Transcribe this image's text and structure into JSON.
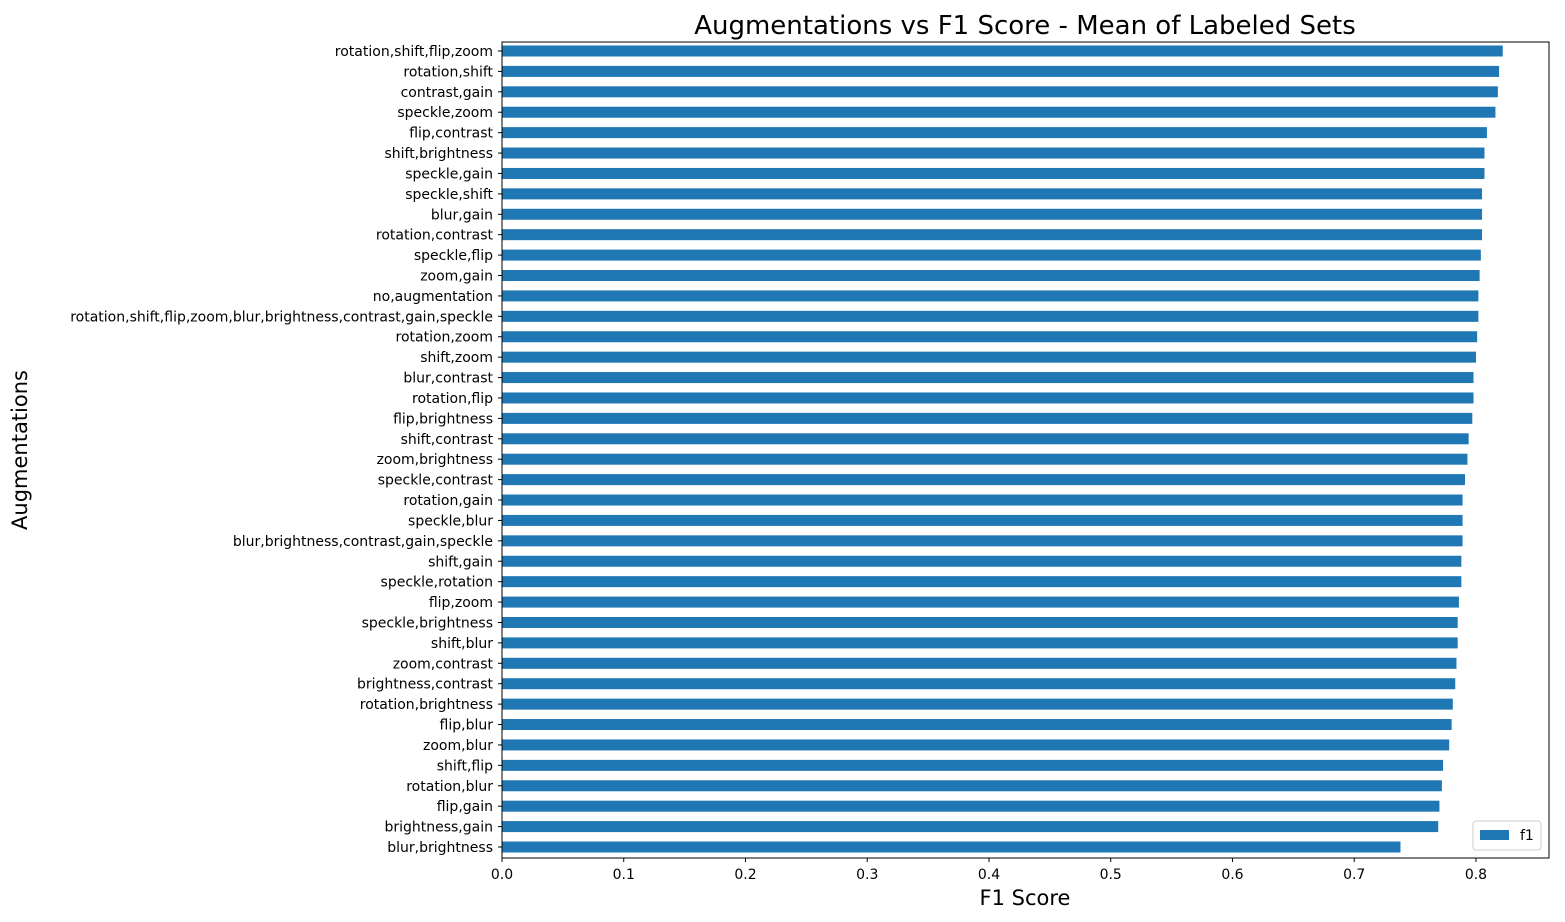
{
  "chart_data": {
    "type": "bar",
    "orientation": "horizontal",
    "title": "Augmentations vs F1 Score - Mean of Labeled Sets",
    "xlabel": "F1 Score",
    "ylabel": "Augmentations",
    "xlim": [
      0,
      0.86
    ],
    "xticks": [
      "0.0",
      "0.1",
      "0.2",
      "0.3",
      "0.4",
      "0.5",
      "0.6",
      "0.7",
      "0.8"
    ],
    "grid": false,
    "legend_position": "lower-right",
    "bar_color": "#1f77b4",
    "series": [
      {
        "name": "f1",
        "points": [
          {
            "label": "rotation,shift,flip,zoom",
            "value": 0.822
          },
          {
            "label": "rotation,shift",
            "value": 0.819
          },
          {
            "label": "contrast,gain",
            "value": 0.818
          },
          {
            "label": "speckle,zoom",
            "value": 0.816
          },
          {
            "label": "flip,contrast",
            "value": 0.809
          },
          {
            "label": "shift,brightness",
            "value": 0.807
          },
          {
            "label": "speckle,gain",
            "value": 0.807
          },
          {
            "label": "speckle,shift",
            "value": 0.805
          },
          {
            "label": "blur,gain",
            "value": 0.805
          },
          {
            "label": "rotation,contrast",
            "value": 0.805
          },
          {
            "label": "speckle,flip",
            "value": 0.804
          },
          {
            "label": "zoom,gain",
            "value": 0.803
          },
          {
            "label": "no,augmentation",
            "value": 0.802
          },
          {
            "label": "rotation,shift,flip,zoom,blur,brightness,contrast,gain,speckle",
            "value": 0.802
          },
          {
            "label": "rotation,zoom",
            "value": 0.801
          },
          {
            "label": "shift,zoom",
            "value": 0.8
          },
          {
            "label": "blur,contrast",
            "value": 0.798
          },
          {
            "label": "rotation,flip",
            "value": 0.798
          },
          {
            "label": "flip,brightness",
            "value": 0.797
          },
          {
            "label": "shift,contrast",
            "value": 0.794
          },
          {
            "label": "zoom,brightness",
            "value": 0.793
          },
          {
            "label": "speckle,contrast",
            "value": 0.791
          },
          {
            "label": "rotation,gain",
            "value": 0.789
          },
          {
            "label": "speckle,blur",
            "value": 0.789
          },
          {
            "label": "blur,brightness,contrast,gain,speckle",
            "value": 0.789
          },
          {
            "label": "shift,gain",
            "value": 0.788
          },
          {
            "label": "speckle,rotation",
            "value": 0.788
          },
          {
            "label": "flip,zoom",
            "value": 0.786
          },
          {
            "label": "speckle,brightness",
            "value": 0.785
          },
          {
            "label": "shift,blur",
            "value": 0.785
          },
          {
            "label": "zoom,contrast",
            "value": 0.784
          },
          {
            "label": "brightness,contrast",
            "value": 0.783
          },
          {
            "label": "rotation,brightness",
            "value": 0.781
          },
          {
            "label": "flip,blur",
            "value": 0.78
          },
          {
            "label": "zoom,blur",
            "value": 0.778
          },
          {
            "label": "shift,flip",
            "value": 0.773
          },
          {
            "label": "rotation,blur",
            "value": 0.772
          },
          {
            "label": "flip,gain",
            "value": 0.77
          },
          {
            "label": "brightness,gain",
            "value": 0.769
          },
          {
            "label": "blur,brightness",
            "value": 0.738
          }
        ]
      }
    ]
  }
}
